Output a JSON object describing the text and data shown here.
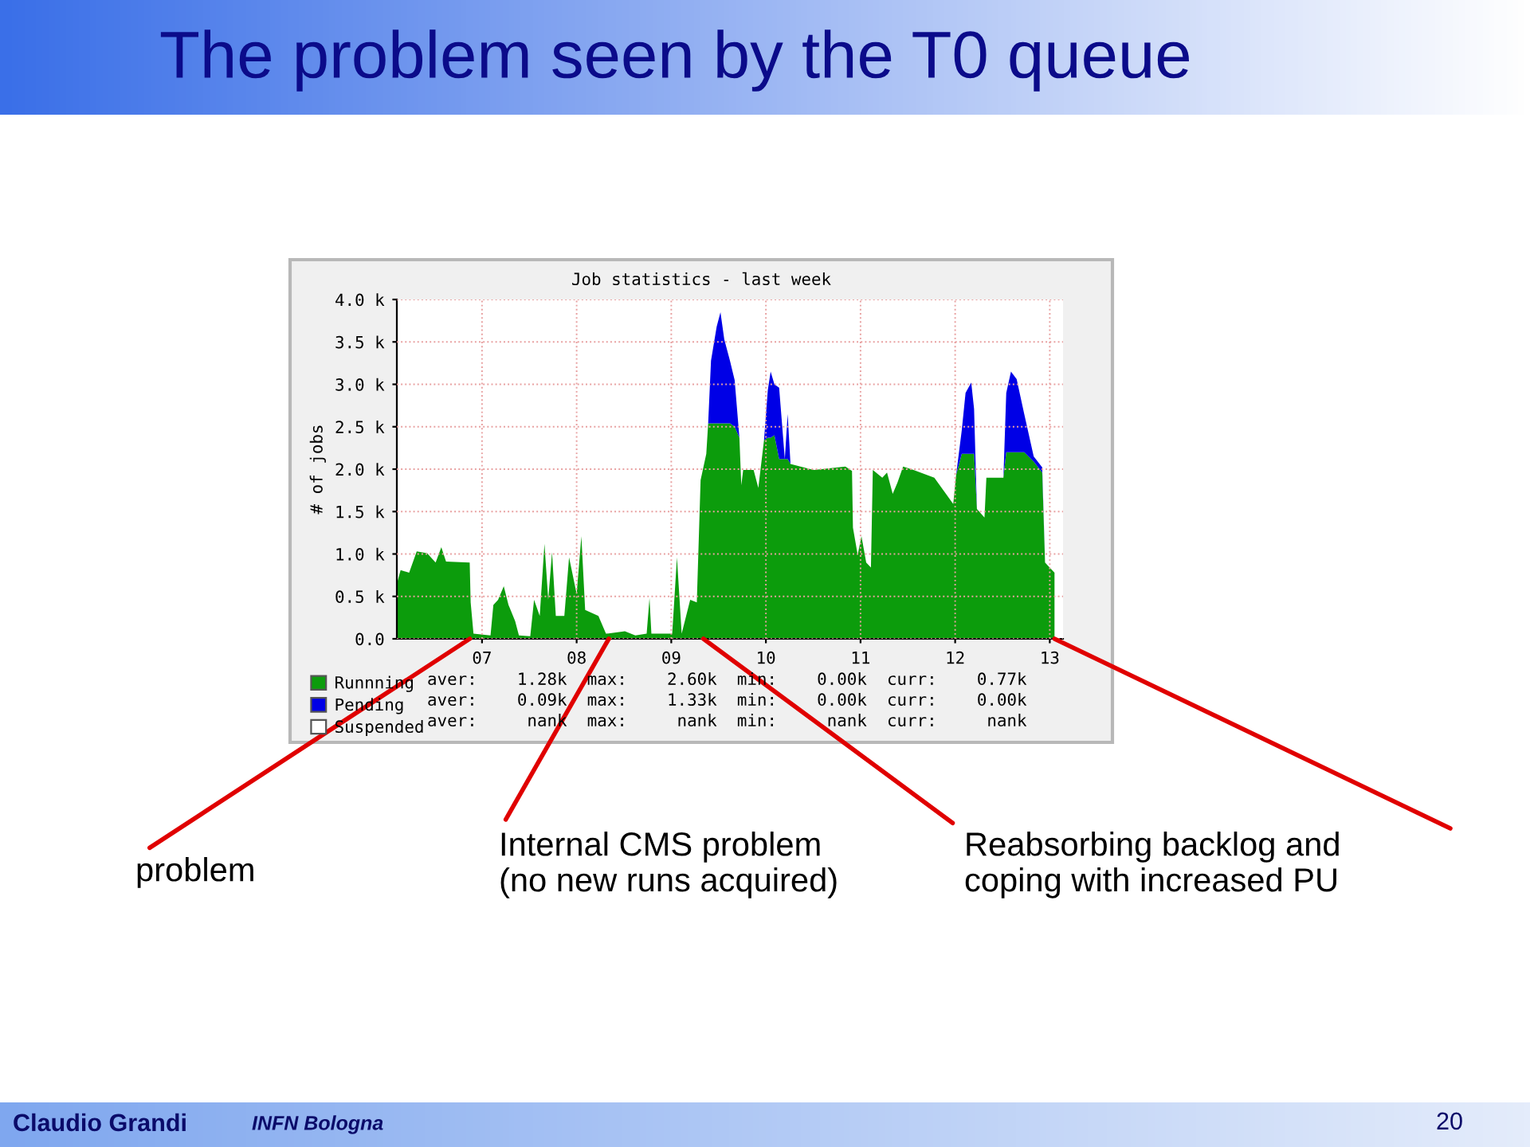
{
  "chart_data": {
    "type": "area",
    "stacked": true,
    "title": "The problem seen by the T0 queue",
    "subtitle": "Job statistics - last week",
    "ylabel": "# of jobs",
    "x": [
      6.1,
      6.14,
      6.23,
      6.31,
      6.42,
      6.51,
      6.57,
      6.62,
      6.87,
      6.88,
      6.91,
      7.09,
      7.12,
      7.17,
      7.23,
      7.28,
      7.35,
      7.39,
      7.51,
      7.55,
      7.61,
      7.66,
      7.7,
      7.74,
      7.78,
      7.87,
      7.92,
      8.0,
      8.05,
      8.09,
      8.23,
      8.31,
      8.51,
      8.62,
      8.74,
      8.77,
      8.79,
      9.01,
      9.06,
      9.11,
      9.2,
      9.27,
      9.31,
      9.37,
      9.39,
      9.42,
      9.48,
      9.52,
      9.56,
      9.62,
      9.67,
      9.72,
      9.74,
      9.76,
      9.87,
      9.92,
      9.98,
      10.02,
      10.05,
      10.09,
      10.14,
      10.2,
      10.23,
      10.26,
      10.51,
      10.84,
      10.91,
      10.92,
      10.97,
      11.01,
      11.06,
      11.11,
      11.13,
      11.23,
      11.28,
      11.34,
      11.39,
      11.45,
      11.56,
      11.78,
      11.98,
      12.01,
      12.07,
      12.11,
      12.17,
      12.2,
      12.23,
      12.31,
      12.33,
      12.51,
      12.54,
      12.59,
      12.65,
      12.73,
      12.83,
      12.92,
      12.95,
      13.05
    ],
    "series": [
      {
        "name": "Runnning",
        "color": "#0c9c0c",
        "values": [
          0.65,
          0.81,
          0.78,
          1.03,
          1.01,
          0.9,
          1.08,
          0.91,
          0.9,
          0.43,
          0.06,
          0.04,
          0.4,
          0.46,
          0.62,
          0.4,
          0.21,
          0.04,
          0.03,
          0.46,
          0.27,
          1.12,
          0.46,
          1.02,
          0.27,
          0.27,
          0.96,
          0.53,
          1.21,
          0.34,
          0.27,
          0.06,
          0.09,
          0.04,
          0.06,
          0.48,
          0.06,
          0.06,
          0.96,
          0.06,
          0.46,
          0.43,
          1.87,
          2.18,
          2.54,
          2.54,
          2.54,
          2.54,
          2.54,
          2.54,
          2.5,
          2.37,
          1.81,
          1.99,
          1.99,
          1.78,
          2.34,
          2.37,
          2.37,
          2.4,
          2.12,
          2.12,
          2.12,
          2.06,
          1.99,
          2.03,
          1.98,
          1.31,
          0.99,
          1.21,
          0.9,
          0.84,
          1.99,
          1.9,
          1.96,
          1.71,
          1.84,
          2.03,
          1.99,
          1.9,
          1.59,
          1.93,
          2.18,
          2.18,
          2.18,
          2.18,
          1.53,
          1.43,
          1.9,
          1.9,
          2.2,
          2.2,
          2.2,
          2.2,
          2.09,
          1.96,
          0.9,
          0.78
        ]
      },
      {
        "name": "Pending",
        "color": "#0000e6",
        "values": [
          0,
          0,
          0,
          0,
          0,
          0,
          0,
          0,
          0,
          0,
          0,
          0,
          0,
          0,
          0,
          0,
          0,
          0,
          0,
          0,
          0,
          0,
          0,
          0,
          0,
          0,
          0,
          0,
          0,
          0,
          0,
          0,
          0,
          0,
          0,
          0,
          0,
          0,
          0,
          0,
          0,
          0,
          0,
          0,
          0,
          0.74,
          1.14,
          1.31,
          0.99,
          0.74,
          0.55,
          0,
          0,
          0,
          0,
          0,
          0,
          0.56,
          0.78,
          0.6,
          0.84,
          0,
          0.53,
          0,
          0,
          0,
          0,
          0,
          0,
          0,
          0,
          0,
          0,
          0,
          0,
          0,
          0,
          0,
          0,
          0,
          0,
          0,
          0.28,
          0.72,
          0.84,
          0.53,
          0,
          0,
          0,
          0,
          0.7,
          0.95,
          0.86,
          0.45,
          0.06,
          0.06,
          0,
          0
        ]
      },
      {
        "name": "Suspended",
        "color": "#ffffff",
        "values": [
          null,
          null,
          null,
          null,
          null,
          null,
          null,
          null,
          null,
          null,
          null,
          null,
          null,
          null,
          null,
          null,
          null,
          null,
          null,
          null,
          null,
          null,
          null,
          null,
          null,
          null,
          null,
          null,
          null,
          null,
          null,
          null,
          null,
          null,
          null,
          null,
          null,
          null,
          null,
          null,
          null,
          null,
          null,
          null,
          null,
          null,
          null,
          null,
          null,
          null,
          null,
          null,
          null,
          null,
          null,
          null,
          null,
          null,
          null,
          null,
          null,
          null,
          null,
          null,
          null,
          null,
          null,
          null,
          null,
          null,
          null,
          null,
          null,
          null,
          null,
          null,
          null,
          null,
          null,
          null,
          null,
          null,
          null,
          null,
          null,
          null,
          null,
          null,
          null,
          null,
          null,
          null,
          null,
          null,
          null,
          null,
          null,
          null
        ]
      }
    ],
    "xlim": [
      6.1,
      13.14
    ],
    "xticks": [
      {
        "value": 7,
        "label": "07"
      },
      {
        "value": 8,
        "label": "08"
      },
      {
        "value": 9,
        "label": "09"
      },
      {
        "value": 10,
        "label": "10"
      },
      {
        "value": 11,
        "label": "11"
      },
      {
        "value": 12,
        "label": "12"
      },
      {
        "value": 13,
        "label": "13"
      }
    ],
    "ylim": [
      0,
      4.0
    ],
    "yticks": [
      {
        "value": 0,
        "label": "0.0"
      },
      {
        "value": 0.5,
        "label": "0.5 k"
      },
      {
        "value": 1.0,
        "label": "1.0 k"
      },
      {
        "value": 1.5,
        "label": "1.5 k"
      },
      {
        "value": 2.0,
        "label": "2.0 k"
      },
      {
        "value": 2.5,
        "label": "2.5 k"
      },
      {
        "value": 3.0,
        "label": "3.0 k"
      },
      {
        "value": 3.5,
        "label": "3.5 k"
      },
      {
        "value": 4.0,
        "label": "4.0 k"
      }
    ],
    "grid": true,
    "legend": "bottom",
    "annotations": [
      {
        "text": "problem",
        "x": 6.87,
        "y": 0
      },
      {
        "text": "Internal CMS problem\n(no new runs acquired)",
        "x": 8.34,
        "y": 0
      },
      {
        "text": "Reabsorbing backlog and\ncoping with increased PU",
        "x": 9.34,
        "y": 0
      },
      "aver:    1.28k  max:    2.60k  min:    0.00k  curr:    0.77k",
      "aver:    0.09k  max:    1.33k  min:    0.00k  curr:    0.00k",
      "aver:     nank  max:     nank  min:     nank  curr:     nank",
      "Claudio Grandi",
      "INFN Bologna",
      "20"
    ]
  }
}
